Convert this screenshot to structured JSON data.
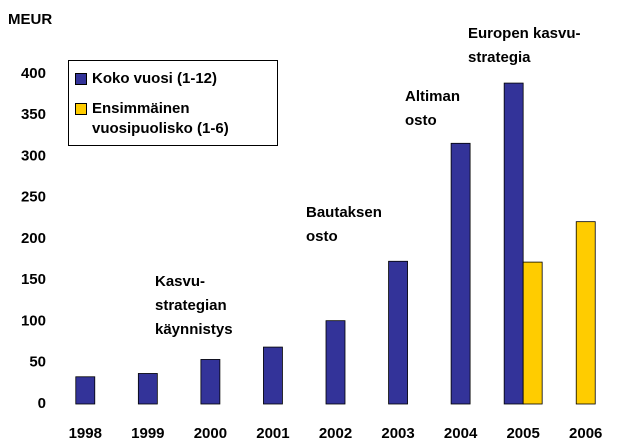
{
  "chart_data": {
    "type": "bar",
    "y_label": "MEUR",
    "categories": [
      "1998",
      "1999",
      "2000",
      "2001",
      "2002",
      "2003",
      "2004",
      "2005",
      "2006"
    ],
    "series": [
      {
        "name": "Koko vuosi (1-12)",
        "color": "#333399",
        "values": [
          33,
          37,
          54,
          69,
          101,
          173,
          316,
          389,
          null
        ]
      },
      {
        "name": "Ensimmäinen vuosipuolisko (1-6)",
        "color": "#ffcc00",
        "values": [
          null,
          null,
          null,
          null,
          null,
          null,
          null,
          172,
          221
        ]
      }
    ],
    "ylim": [
      0,
      400
    ],
    "yticks": [
      0,
      50,
      100,
      150,
      200,
      250,
      300,
      350,
      400
    ],
    "grid": false,
    "legend": "upper left",
    "annotations": [
      {
        "lines": [
          "Kasvu-",
          "strategian",
          "käynnistys"
        ]
      },
      {
        "lines": [
          "Bautaksen",
          "osto"
        ]
      },
      {
        "lines": [
          "Altiman",
          "osto"
        ]
      },
      {
        "lines": [
          "Europen kasvu-",
          "strategia"
        ]
      }
    ]
  }
}
